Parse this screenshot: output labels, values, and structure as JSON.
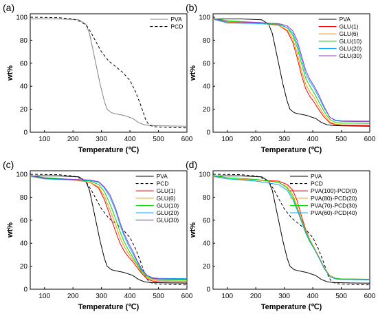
{
  "chart_data": [
    {
      "type": "line",
      "panel_label": "(a)",
      "xlabel": "Temperature (℃)",
      "ylabel": "wt%",
      "xlim": [
        50,
        600
      ],
      "ylim": [
        0,
        103
      ],
      "x_ticks": [
        100,
        200,
        300,
        400,
        500,
        600
      ],
      "y_ticks": [
        0,
        20,
        40,
        60,
        80,
        100
      ],
      "legend_position": "top-right",
      "series": [
        {
          "name": "PVA",
          "color": "#808080",
          "dash": "solid",
          "x": [
            50,
            150,
            220,
            245,
            258,
            268,
            280,
            295,
            310,
            320,
            335,
            350,
            380,
            410,
            430,
            450,
            470,
            500,
            550,
            600
          ],
          "y": [
            98.5,
            98.5,
            97.8,
            94,
            86,
            74,
            60,
            42,
            27,
            20,
            17,
            16,
            14.5,
            12,
            8.5,
            6.5,
            5.8,
            5.6,
            5.4,
            5.2
          ]
        },
        {
          "name": "PCD",
          "color": "#000000",
          "dash": "dashed",
          "x": [
            50,
            150,
            200,
            230,
            250,
            265,
            280,
            300,
            325,
            350,
            375,
            400,
            420,
            440,
            455,
            465,
            480,
            500,
            550,
            600
          ],
          "y": [
            100,
            99.6,
            98.5,
            96,
            92,
            86,
            79,
            70,
            62,
            57,
            52,
            45,
            35,
            22,
            11,
            7,
            5,
            4.5,
            4,
            3.8
          ]
        }
      ]
    },
    {
      "type": "line",
      "panel_label": "(b)",
      "xlabel": "Temperature (℃)",
      "ylabel": "wt%",
      "xlim": [
        50,
        600
      ],
      "ylim": [
        0,
        103
      ],
      "x_ticks": [
        100,
        200,
        300,
        400,
        500,
        600
      ],
      "y_ticks": [
        0,
        20,
        40,
        60,
        80,
        100
      ],
      "legend_position": "top-right",
      "series": [
        {
          "name": "PVA",
          "color": "#000000",
          "dash": "solid",
          "x": [
            50,
            150,
            220,
            245,
            258,
            268,
            280,
            295,
            310,
            320,
            335,
            350,
            380,
            410,
            430,
            450,
            470,
            500,
            550,
            600
          ],
          "y": [
            98.5,
            98.5,
            97.8,
            94,
            86,
            74,
            60,
            42,
            27,
            20,
            17,
            16,
            14.5,
            12,
            8.5,
            6.5,
            5.8,
            5.6,
            5.4,
            5.2
          ]
        },
        {
          "name": "GLU(1)",
          "color": "#ff0000",
          "dash": "solid",
          "x": [
            50,
            100,
            200,
            280,
            310,
            330,
            345,
            360,
            375,
            390,
            405,
            420,
            440,
            460,
            480,
            500,
            550,
            600
          ],
          "y": [
            98,
            96,
            95,
            93,
            88,
            78,
            65,
            50,
            38,
            31,
            26,
            20,
            13,
            8,
            6.5,
            6,
            5.8,
            5.7
          ]
        },
        {
          "name": "GLU(6)",
          "color": "#ff9900",
          "dash": "solid",
          "x": [
            50,
            100,
            200,
            280,
            310,
            330,
            345,
            360,
            375,
            390,
            405,
            420,
            440,
            460,
            480,
            500,
            550,
            600
          ],
          "y": [
            98,
            95.5,
            95,
            93,
            89,
            81,
            69,
            54,
            42,
            35,
            30,
            23,
            15,
            9,
            7,
            6.5,
            6.3,
            6.2
          ]
        },
        {
          "name": "GLU(10)",
          "color": "#00dd00",
          "dash": "solid",
          "x": [
            50,
            100,
            200,
            280,
            310,
            330,
            345,
            360,
            375,
            390,
            405,
            420,
            440,
            460,
            480,
            500,
            550,
            600
          ],
          "y": [
            99,
            97,
            95.5,
            94,
            91,
            84,
            74,
            60,
            47,
            40,
            34,
            27,
            18,
            11,
            8.5,
            8,
            7.8,
            7.7
          ]
        },
        {
          "name": "GLU(20)",
          "color": "#00aaff",
          "dash": "solid",
          "x": [
            50,
            100,
            200,
            280,
            310,
            330,
            345,
            360,
            375,
            390,
            405,
            420,
            440,
            460,
            480,
            500,
            550,
            600
          ],
          "y": [
            98.5,
            95,
            94.5,
            93.5,
            91,
            86,
            77,
            64,
            51,
            44,
            38,
            31,
            21,
            13,
            10.5,
            10,
            9.8,
            9.7
          ]
        },
        {
          "name": "GLU(30)",
          "color": "#9933cc",
          "dash": "solid",
          "x": [
            50,
            100,
            200,
            280,
            310,
            330,
            345,
            360,
            375,
            390,
            405,
            420,
            440,
            460,
            480,
            500,
            550,
            600
          ],
          "y": [
            99,
            96,
            95.5,
            94.5,
            92.5,
            88,
            80,
            67,
            54,
            46,
            40,
            33,
            22,
            13,
            10,
            9.5,
            9.3,
            9.2
          ]
        }
      ]
    },
    {
      "type": "line",
      "panel_label": "(c)",
      "xlabel": "Temperature (℃)",
      "ylabel": "wt%",
      "xlim": [
        50,
        600
      ],
      "ylim": [
        0,
        103
      ],
      "x_ticks": [
        100,
        200,
        300,
        400,
        500,
        600
      ],
      "y_ticks": [
        0,
        20,
        40,
        60,
        80,
        100
      ],
      "legend_position": "top-right",
      "series": [
        {
          "name": "PVA",
          "color": "#000000",
          "dash": "solid",
          "x": [
            50,
            150,
            220,
            245,
            258,
            268,
            280,
            295,
            310,
            320,
            335,
            350,
            380,
            410,
            430,
            450,
            470,
            500,
            550,
            600
          ],
          "y": [
            98.5,
            98.5,
            97.8,
            94,
            86,
            74,
            60,
            42,
            27,
            20,
            17,
            16,
            14.5,
            12,
            8.5,
            6.5,
            5.8,
            5.6,
            5.4,
            5.2
          ]
        },
        {
          "name": "PCD",
          "color": "#000000",
          "dash": "dashed",
          "x": [
            50,
            150,
            200,
            230,
            250,
            265,
            280,
            300,
            325,
            350,
            375,
            400,
            420,
            440,
            455,
            465,
            480,
            500,
            550,
            600
          ],
          "y": [
            100,
            99.6,
            98.5,
            96,
            92,
            86,
            79,
            70,
            62,
            57,
            52,
            45,
            35,
            22,
            11,
            7,
            5,
            4.5,
            4,
            3.8
          ]
        },
        {
          "name": "GLU(1)",
          "color": "#ff0000",
          "dash": "solid",
          "x": [
            50,
            100,
            200,
            260,
            290,
            310,
            330,
            350,
            365,
            380,
            395,
            410,
            425,
            440,
            460,
            480,
            500,
            550,
            600
          ],
          "y": [
            98,
            96.5,
            95,
            93,
            88,
            78,
            64,
            50,
            40,
            33,
            28,
            24,
            19,
            14,
            9,
            7,
            6.5,
            6.3,
            6.2
          ]
        },
        {
          "name": "GLU(6)",
          "color": "#ff9900",
          "dash": "solid",
          "x": [
            50,
            100,
            200,
            260,
            290,
            310,
            330,
            350,
            365,
            380,
            395,
            410,
            425,
            440,
            460,
            480,
            500,
            550,
            600
          ],
          "y": [
            98,
            96,
            95,
            93,
            89,
            81,
            69,
            56,
            45,
            37,
            31,
            26,
            21,
            15,
            10,
            8,
            7.5,
            7.3,
            7.2
          ]
        },
        {
          "name": "GLU(10)",
          "color": "#00dd00",
          "dash": "solid",
          "x": [
            50,
            100,
            200,
            260,
            290,
            310,
            330,
            350,
            365,
            380,
            395,
            410,
            425,
            440,
            460,
            480,
            500,
            550,
            600
          ],
          "y": [
            99,
            97,
            95.5,
            94,
            91,
            85,
            74,
            61,
            50,
            41,
            34,
            28,
            22,
            16,
            11,
            9,
            8.5,
            8.3,
            8.2
          ]
        },
        {
          "name": "GLU(20)",
          "color": "#00aaff",
          "dash": "solid",
          "x": [
            50,
            100,
            200,
            260,
            290,
            310,
            330,
            350,
            365,
            380,
            395,
            410,
            425,
            440,
            460,
            480,
            500,
            550,
            600
          ],
          "y": [
            98.5,
            96,
            95,
            94.5,
            93,
            88,
            80,
            68,
            56,
            46,
            38,
            31,
            24,
            17,
            12,
            10,
            9.5,
            9.3,
            9.2
          ]
        },
        {
          "name": "GLU(30)",
          "color": "#9933cc",
          "dash": "solid",
          "x": [
            50,
            100,
            200,
            260,
            290,
            310,
            330,
            350,
            365,
            380,
            395,
            410,
            425,
            440,
            460,
            480,
            500,
            550,
            600
          ],
          "y": [
            99,
            96.5,
            95.5,
            95,
            93.5,
            89,
            82,
            70,
            58,
            48,
            40,
            33,
            25,
            18,
            12,
            9.5,
            9,
            8.8,
            8.7
          ]
        }
      ]
    },
    {
      "type": "line",
      "panel_label": "(d)",
      "xlabel": "Temperature (℃)",
      "ylabel": "wt%",
      "xlim": [
        50,
        600
      ],
      "ylim": [
        0,
        103
      ],
      "x_ticks": [
        100,
        200,
        300,
        400,
        500,
        600
      ],
      "y_ticks": [
        0,
        20,
        40,
        60,
        80,
        100
      ],
      "legend_position": "top-right",
      "series": [
        {
          "name": "PVA",
          "color": "#000000",
          "dash": "solid",
          "x": [
            50,
            150,
            220,
            245,
            258,
            268,
            280,
            295,
            310,
            320,
            335,
            350,
            380,
            410,
            430,
            450,
            470,
            500,
            550,
            600
          ],
          "y": [
            98.5,
            98.5,
            97.8,
            94,
            86,
            74,
            60,
            42,
            27,
            20,
            17,
            16,
            14.5,
            12,
            8.5,
            6.5,
            5.8,
            5.6,
            5.4,
            5.2
          ]
        },
        {
          "name": "PCD",
          "color": "#000000",
          "dash": "dashed",
          "x": [
            50,
            150,
            200,
            230,
            250,
            265,
            280,
            300,
            325,
            350,
            375,
            400,
            420,
            440,
            455,
            465,
            480,
            500,
            550,
            600
          ],
          "y": [
            100,
            99.6,
            98.5,
            96,
            92,
            86,
            79,
            70,
            62,
            57,
            52,
            45,
            35,
            22,
            11,
            7,
            5,
            4.5,
            4,
            3.8
          ]
        },
        {
          "name": "PVA(100)-PCD(0)",
          "color": "#ff0000",
          "dash": "solid",
          "x": [
            50,
            100,
            200,
            280,
            310,
            330,
            345,
            360,
            375,
            390,
            405,
            420,
            440,
            460,
            480,
            500,
            550,
            600
          ],
          "y": [
            98,
            96,
            95,
            94,
            91,
            86,
            77,
            64,
            52,
            43,
            36,
            29,
            19,
            11,
            9,
            8.5,
            8.3,
            8.2
          ]
        },
        {
          "name": "PVA(80)-PCD(20)",
          "color": "#ff9900",
          "dash": "solid",
          "x": [
            50,
            100,
            200,
            280,
            310,
            330,
            345,
            360,
            375,
            390,
            405,
            420,
            440,
            460,
            480,
            500,
            550,
            600
          ],
          "y": [
            98,
            96,
            95,
            93,
            89,
            82,
            72,
            61,
            51,
            43,
            36,
            29,
            19,
            12,
            9.5,
            9,
            8.8,
            8.7
          ]
        },
        {
          "name": "PVA(70)-PCD(30)",
          "color": "#00dd00",
          "dash": "solid",
          "x": [
            50,
            100,
            200,
            280,
            310,
            330,
            345,
            360,
            375,
            390,
            405,
            420,
            440,
            460,
            480,
            500,
            550,
            600
          ],
          "y": [
            99,
            97,
            95.5,
            93,
            88,
            80,
            70,
            60,
            50,
            42,
            35,
            28,
            18,
            11,
            9.5,
            9,
            8.8,
            8.7
          ]
        },
        {
          "name": "PVA(60)-PCD(40)",
          "color": "#00aaff",
          "dash": "solid",
          "x": [
            50,
            100,
            200,
            280,
            310,
            330,
            345,
            360,
            375,
            390,
            405,
            420,
            440,
            460,
            480,
            500,
            550,
            600
          ],
          "y": [
            98.5,
            96,
            94,
            91,
            86,
            78,
            69,
            59,
            49,
            41,
            35,
            28,
            18,
            11,
            9,
            8.5,
            8.3,
            8.2
          ]
        }
      ]
    }
  ]
}
